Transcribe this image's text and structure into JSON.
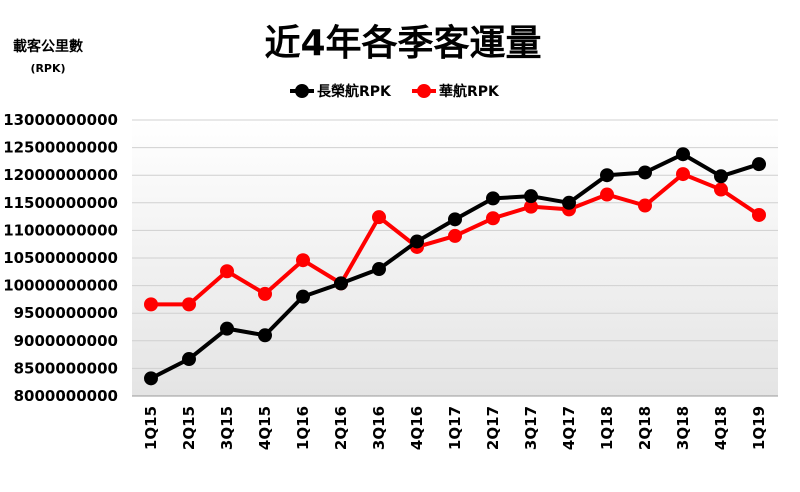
{
  "chart_data": {
    "type": "line",
    "title": "近4年各季客運量",
    "ylabel": "載客公里數",
    "ylabel_unit": "(RPK)",
    "xlabel": "",
    "categories": [
      "1Q15",
      "2Q15",
      "3Q15",
      "4Q15",
      "1Q16",
      "2Q16",
      "3Q16",
      "4Q16",
      "1Q17",
      "2Q17",
      "3Q17",
      "4Q17",
      "1Q18",
      "2Q18",
      "3Q18",
      "4Q18",
      "1Q19"
    ],
    "ylim": [
      8000000000,
      13000000000
    ],
    "yticks": [
      "13000000000",
      "12500000000",
      "12000000000",
      "11500000000",
      "11000000000",
      "10500000000",
      "10000000000",
      "9500000000",
      "9000000000",
      "8500000000",
      "8000000000"
    ],
    "grid": true,
    "legend_position": "top-center",
    "series": [
      {
        "name": "長榮航RPK",
        "color": "#000000",
        "values": [
          8320000000,
          8670000000,
          9220000000,
          9100000000,
          9800000000,
          10040000000,
          10300000000,
          10800000000,
          11200000000,
          11580000000,
          11620000000,
          11500000000,
          12000000000,
          12050000000,
          12380000000,
          11980000000,
          12200000000
        ]
      },
      {
        "name": "華航RPK",
        "color": "#ff0000",
        "values": [
          9660000000,
          9660000000,
          10260000000,
          9850000000,
          10460000000,
          10040000000,
          11240000000,
          10700000000,
          10900000000,
          11220000000,
          11430000000,
          11380000000,
          11650000000,
          11450000000,
          12020000000,
          11740000000,
          11280000000
        ]
      }
    ]
  }
}
